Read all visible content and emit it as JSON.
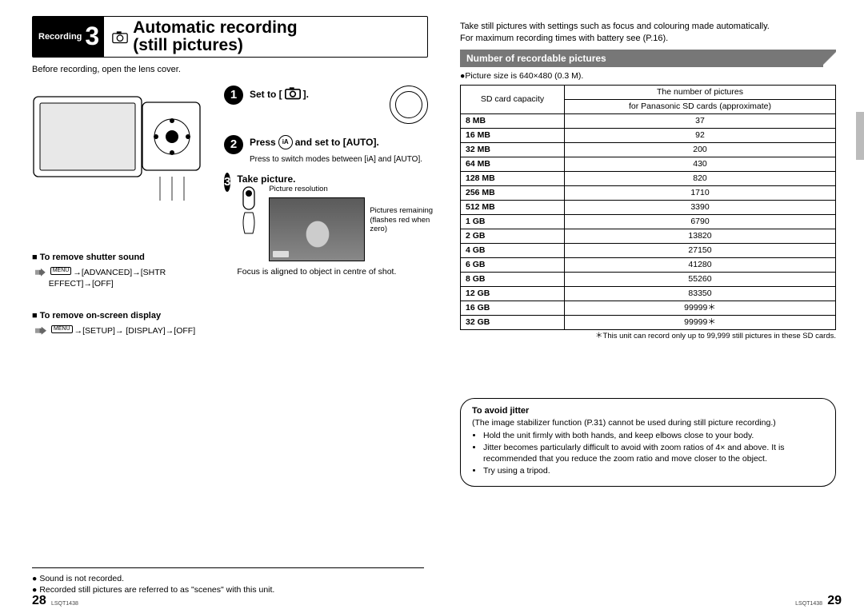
{
  "title": {
    "section_label": "Recording",
    "step_number": "3",
    "main_line1": "Automatic recording",
    "main_line2": "(still pictures)"
  },
  "left": {
    "intro": "Before recording, open the lens cover.",
    "tip_shutter_title": "To remove shutter sound",
    "tip_shutter_path": "→[ADVANCED]→[SHTR EFFECT]→[OFF]",
    "tip_display_title": "To remove on-screen display",
    "tip_display_path": "→[SETUP]→ [DISPLAY]→[OFF]",
    "menu_label": "MENU",
    "step1_text_a": "Set to [",
    "step1_text_b": "].",
    "step2_text_a": "Press",
    "step2_text_b": "and set to [AUTO].",
    "step2_note": "Press       to switch modes between [iA] and [AUTO].",
    "step3_text": "Take picture.",
    "step3_res_label": "Picture resolution",
    "step3_remain_a": "Pictures remaining",
    "step3_remain_b": "(flashes red when zero)",
    "step3_focus": "Focus is aligned to object in centre of shot.",
    "foot1": "Sound is not recorded.",
    "foot2": "Recorded still pictures are referred to as \"scenes\" with this unit."
  },
  "right": {
    "intro1": "Take still pictures with settings such as focus and colouring made automatically.",
    "intro2": "For maximum recording times with battery see (P.16).",
    "section_title": "Number of recordable pictures",
    "pic_size": "Picture size is 640×480 (0.3 M).",
    "col1": "SD card capacity",
    "col2a": "The number of pictures",
    "col2b": "for Panasonic SD cards (approximate)",
    "rows": [
      {
        "cap": "8 MB",
        "val": "37"
      },
      {
        "cap": "16 MB",
        "val": "92"
      },
      {
        "cap": "32 MB",
        "val": "200"
      },
      {
        "cap": "64 MB",
        "val": "430"
      },
      {
        "cap": "128 MB",
        "val": "820"
      },
      {
        "cap": "256 MB",
        "val": "1710"
      },
      {
        "cap": "512 MB",
        "val": "3390"
      },
      {
        "cap": "1 GB",
        "val": "6790"
      },
      {
        "cap": "2 GB",
        "val": "13820"
      },
      {
        "cap": "4 GB",
        "val": "27150"
      },
      {
        "cap": "6 GB",
        "val": "41280"
      },
      {
        "cap": "8 GB",
        "val": "55260"
      },
      {
        "cap": "12 GB",
        "val": "83350"
      },
      {
        "cap": "16 GB",
        "val": "99999＊"
      },
      {
        "cap": "32 GB",
        "val": "99999＊"
      }
    ],
    "star_note": "This unit can record only up to 99,999 still pictures in these SD cards.",
    "warn_title": "To avoid jitter",
    "warn_intro": "(The image stabilizer function (P.31) cannot be used during still picture recording.)",
    "warn1": "Hold the unit firmly with both hands, and keep elbows close to your body.",
    "warn2": "Jitter becomes particularly difficult to avoid with zoom ratios of 4× and above. It is recommended that you reduce the zoom ratio and move closer to the object.",
    "warn3": "Try using a tripod."
  },
  "footer": {
    "page_left": "28",
    "page_right": "29",
    "code": "LSQT1438"
  }
}
